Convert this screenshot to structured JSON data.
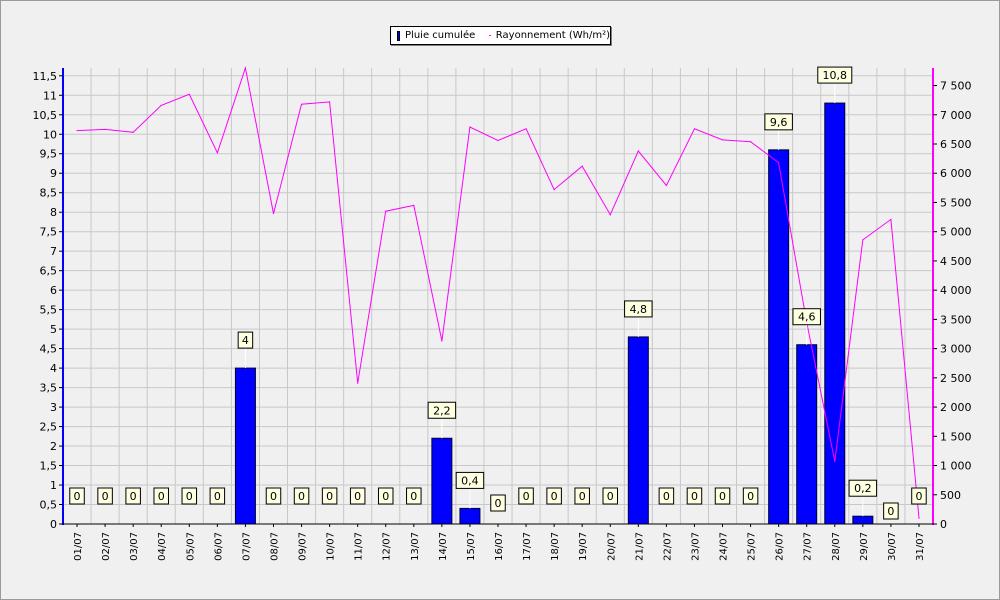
{
  "chart_data": {
    "type": "bar",
    "categories": [
      "01/07",
      "02/07",
      "03/07",
      "04/07",
      "05/07",
      "06/07",
      "07/07",
      "08/07",
      "09/07",
      "10/07",
      "11/07",
      "12/07",
      "13/07",
      "14/07",
      "15/07",
      "16/07",
      "17/07",
      "18/07",
      "19/07",
      "20/07",
      "21/07",
      "22/07",
      "23/07",
      "24/07",
      "25/07",
      "26/07",
      "27/07",
      "28/07",
      "29/07",
      "30/07",
      "31/07"
    ],
    "series": [
      {
        "name": "Pluie cumulée",
        "type": "bar",
        "axis": "left",
        "color": "#0000ff",
        "values": [
          0,
          0,
          0,
          0,
          0,
          0,
          4,
          0,
          0,
          0,
          0,
          0,
          0,
          2.2,
          0.4,
          0,
          0,
          0,
          0,
          0,
          4.8,
          0,
          0,
          0,
          0,
          9.6,
          4.6,
          10.8,
          0.2,
          0,
          0
        ],
        "data_labels": [
          "0",
          "0",
          "0",
          "0",
          "0",
          "0",
          "4",
          "0",
          "0",
          "0",
          "0",
          "0",
          "0",
          "2,2",
          "0,4",
          "0",
          "0",
          "0",
          "0",
          "0",
          "4,8",
          "0",
          "0",
          "0",
          "0",
          "9,6",
          "4,6",
          "10,8",
          "0,2",
          "0",
          "0"
        ]
      },
      {
        "name": "Rayonnement (Wh/m²)",
        "type": "line",
        "axis": "right",
        "color": "#ff00ff",
        "values": [
          6730,
          6750,
          6700,
          7160,
          7350,
          6350,
          7800,
          5310,
          7180,
          7220,
          2410,
          5350,
          5450,
          3130,
          6790,
          6560,
          6760,
          5720,
          6120,
          5290,
          6380,
          5790,
          6760,
          6570,
          6540,
          6180,
          3450,
          1070,
          4860,
          5210,
          100
        ]
      }
    ],
    "y_left": {
      "min": 0,
      "max": 11.7,
      "ticks": [
        0,
        0.5,
        1,
        1.5,
        2,
        2.5,
        3,
        3.5,
        4,
        4.5,
        5,
        5.5,
        6,
        6.5,
        7,
        7.5,
        8,
        8.5,
        9,
        9.5,
        10,
        10.5,
        11,
        11.5
      ],
      "tick_labels": [
        "0",
        "0,5",
        "1",
        "1,5",
        "2",
        "2,5",
        "3",
        "3,5",
        "4",
        "4,5",
        "5",
        "5,5",
        "6",
        "6,5",
        "7",
        "7,5",
        "8",
        "8,5",
        "9",
        "9,5",
        "10",
        "10,5",
        "11",
        "11,5"
      ],
      "color": "#0000ff"
    },
    "y_right": {
      "min": 0,
      "max": 7800,
      "ticks": [
        0,
        500,
        1000,
        1500,
        2000,
        2500,
        3000,
        3500,
        4000,
        4500,
        5000,
        5500,
        6000,
        6500,
        7000,
        7500
      ],
      "tick_labels": [
        "0",
        "500",
        "1 000",
        "1 500",
        "2 000",
        "2 500",
        "3 000",
        "3 500",
        "4 000",
        "4 500",
        "5 000",
        "5 500",
        "6 000",
        "6 500",
        "7 000",
        "7 500"
      ],
      "color": "#ff00ff"
    },
    "grid": true,
    "legend": "top-center"
  }
}
